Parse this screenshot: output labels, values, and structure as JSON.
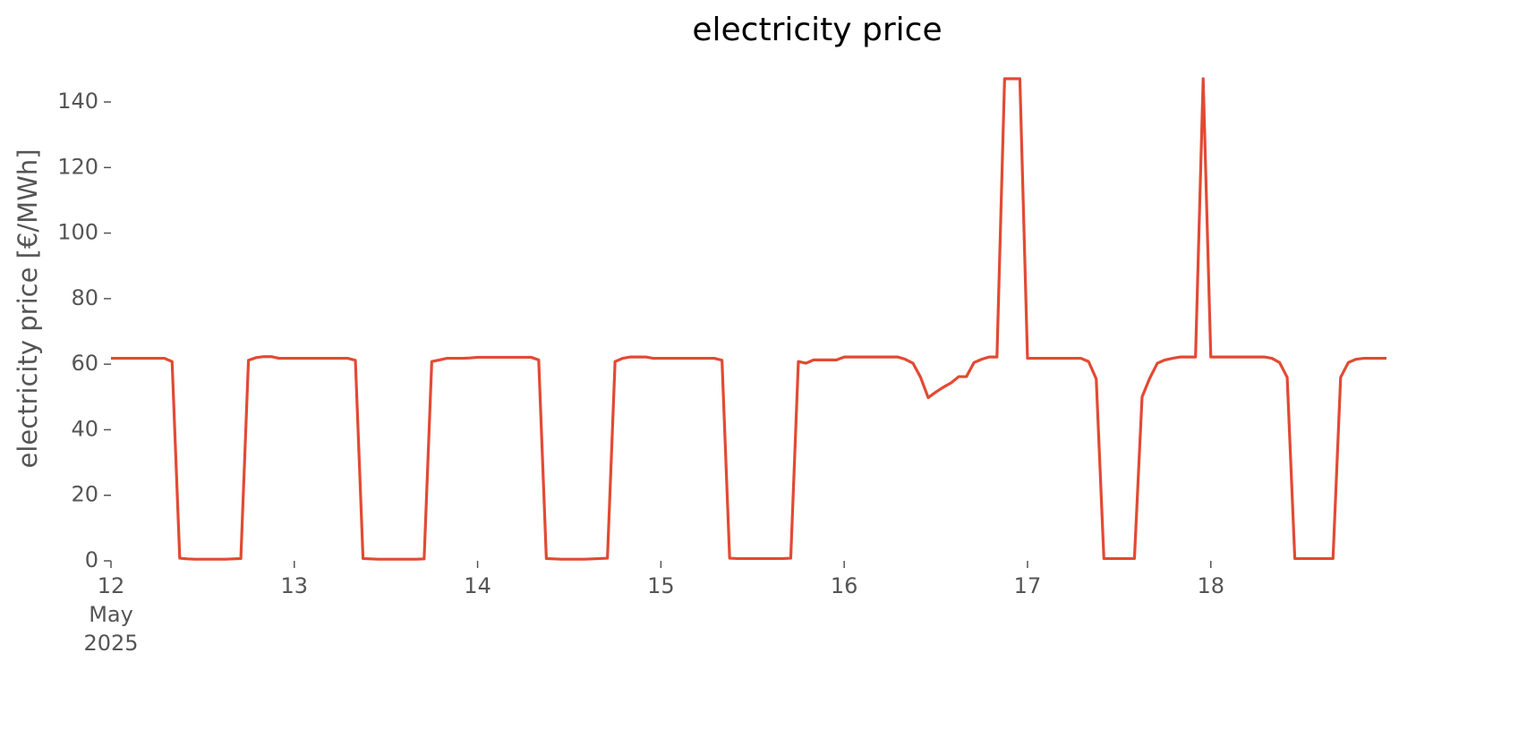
{
  "chart_data": {
    "type": "line",
    "title": "electricity price",
    "y_label": "electricity price [€/MWh]",
    "color": "#e24a33",
    "x": [
      "2025-05-12 00:00",
      "2025-05-12 01:00",
      "2025-05-12 02:00",
      "2025-05-12 03:00",
      "2025-05-12 04:00",
      "2025-05-12 05:00",
      "2025-05-12 06:00",
      "2025-05-12 07:00",
      "2025-05-12 08:00",
      "2025-05-12 09:00",
      "2025-05-12 10:00",
      "2025-05-12 11:00",
      "2025-05-12 12:00",
      "2025-05-12 13:00",
      "2025-05-12 14:00",
      "2025-05-12 15:00",
      "2025-05-12 16:00",
      "2025-05-12 17:00",
      "2025-05-12 18:00",
      "2025-05-12 19:00",
      "2025-05-12 20:00",
      "2025-05-12 21:00",
      "2025-05-12 22:00",
      "2025-05-12 23:00",
      "2025-05-13 00:00",
      "2025-05-13 01:00",
      "2025-05-13 02:00",
      "2025-05-13 03:00",
      "2025-05-13 04:00",
      "2025-05-13 05:00",
      "2025-05-13 06:00",
      "2025-05-13 07:00",
      "2025-05-13 08:00",
      "2025-05-13 09:00",
      "2025-05-13 10:00",
      "2025-05-13 11:00",
      "2025-05-13 12:00",
      "2025-05-13 13:00",
      "2025-05-13 14:00",
      "2025-05-13 15:00",
      "2025-05-13 16:00",
      "2025-05-13 17:00",
      "2025-05-13 18:00",
      "2025-05-13 19:00",
      "2025-05-13 20:00",
      "2025-05-13 21:00",
      "2025-05-13 22:00",
      "2025-05-13 23:00",
      "2025-05-14 00:00",
      "2025-05-14 01:00",
      "2025-05-14 02:00",
      "2025-05-14 03:00",
      "2025-05-14 04:00",
      "2025-05-14 05:00",
      "2025-05-14 06:00",
      "2025-05-14 07:00",
      "2025-05-14 08:00",
      "2025-05-14 09:00",
      "2025-05-14 10:00",
      "2025-05-14 11:00",
      "2025-05-14 12:00",
      "2025-05-14 13:00",
      "2025-05-14 14:00",
      "2025-05-14 15:00",
      "2025-05-14 16:00",
      "2025-05-14 17:00",
      "2025-05-14 18:00",
      "2025-05-14 19:00",
      "2025-05-14 20:00",
      "2025-05-14 21:00",
      "2025-05-14 22:00",
      "2025-05-14 23:00",
      "2025-05-15 00:00",
      "2025-05-15 01:00",
      "2025-05-15 02:00",
      "2025-05-15 03:00",
      "2025-05-15 04:00",
      "2025-05-15 05:00",
      "2025-05-15 06:00",
      "2025-05-15 07:00",
      "2025-05-15 08:00",
      "2025-05-15 09:00",
      "2025-05-15 10:00",
      "2025-05-15 11:00",
      "2025-05-15 12:00",
      "2025-05-15 13:00",
      "2025-05-15 14:00",
      "2025-05-15 15:00",
      "2025-05-15 16:00",
      "2025-05-15 17:00",
      "2025-05-15 18:00",
      "2025-05-15 19:00",
      "2025-05-15 20:00",
      "2025-05-15 21:00",
      "2025-05-15 22:00",
      "2025-05-15 23:00",
      "2025-05-16 00:00",
      "2025-05-16 01:00",
      "2025-05-16 02:00",
      "2025-05-16 03:00",
      "2025-05-16 04:00",
      "2025-05-16 05:00",
      "2025-05-16 06:00",
      "2025-05-16 07:00",
      "2025-05-16 08:00",
      "2025-05-16 09:00",
      "2025-05-16 10:00",
      "2025-05-16 11:00",
      "2025-05-16 12:00",
      "2025-05-16 13:00",
      "2025-05-16 14:00",
      "2025-05-16 15:00",
      "2025-05-16 16:00",
      "2025-05-16 17:00",
      "2025-05-16 18:00",
      "2025-05-16 19:00",
      "2025-05-16 20:00",
      "2025-05-16 21:00",
      "2025-05-16 22:00",
      "2025-05-16 23:00",
      "2025-05-17 00:00",
      "2025-05-17 01:00",
      "2025-05-17 02:00",
      "2025-05-17 03:00",
      "2025-05-17 04:00",
      "2025-05-17 05:00",
      "2025-05-17 06:00",
      "2025-05-17 07:00",
      "2025-05-17 08:00",
      "2025-05-17 09:00",
      "2025-05-17 10:00",
      "2025-05-17 11:00",
      "2025-05-17 12:00",
      "2025-05-17 13:00",
      "2025-05-17 14:00",
      "2025-05-17 15:00",
      "2025-05-17 16:00",
      "2025-05-17 17:00",
      "2025-05-17 18:00",
      "2025-05-17 19:00",
      "2025-05-17 20:00",
      "2025-05-17 21:00",
      "2025-05-17 22:00",
      "2025-05-17 23:00",
      "2025-05-18 00:00",
      "2025-05-18 01:00",
      "2025-05-18 02:00",
      "2025-05-18 03:00",
      "2025-05-18 04:00",
      "2025-05-18 05:00",
      "2025-05-18 06:00",
      "2025-05-18 07:00",
      "2025-05-18 08:00",
      "2025-05-18 09:00",
      "2025-05-18 10:00",
      "2025-05-18 11:00",
      "2025-05-18 12:00",
      "2025-05-18 13:00",
      "2025-05-18 14:00",
      "2025-05-18 15:00",
      "2025-05-18 16:00",
      "2025-05-18 17:00",
      "2025-05-18 18:00",
      "2025-05-18 19:00",
      "2025-05-18 20:00",
      "2025-05-18 21:00",
      "2025-05-18 22:00",
      "2025-05-18 23:00"
    ],
    "values": [
      61.8,
      61.8,
      61.8,
      61.8,
      61.8,
      61.8,
      61.8,
      61.8,
      60.8,
      0.8,
      0.6,
      0.5,
      0.5,
      0.5,
      0.5,
      0.5,
      0.6,
      0.7,
      61.2,
      62.0,
      62.3,
      62.3,
      61.8,
      61.8,
      61.8,
      61.8,
      61.8,
      61.8,
      61.8,
      61.8,
      61.8,
      61.8,
      61.2,
      0.7,
      0.6,
      0.5,
      0.5,
      0.5,
      0.5,
      0.5,
      0.5,
      0.6,
      60.8,
      61.3,
      61.8,
      61.8,
      61.8,
      61.9,
      62.1,
      62.1,
      62.1,
      62.1,
      62.1,
      62.1,
      62.1,
      62.1,
      61.3,
      0.7,
      0.6,
      0.5,
      0.5,
      0.5,
      0.5,
      0.6,
      0.7,
      0.8,
      60.8,
      61.8,
      62.2,
      62.2,
      62.2,
      61.8,
      61.8,
      61.8,
      61.8,
      61.8,
      61.8,
      61.8,
      61.8,
      61.8,
      61.2,
      0.8,
      0.7,
      0.7,
      0.7,
      0.7,
      0.7,
      0.7,
      0.7,
      0.8,
      60.8,
      60.3,
      61.3,
      61.3,
      61.3,
      61.3,
      62.2,
      62.2,
      62.2,
      62.2,
      62.2,
      62.2,
      62.2,
      62.2,
      61.5,
      60.3,
      56.0,
      49.8,
      51.5,
      53.0,
      54.3,
      56.2,
      56.2,
      60.5,
      61.5,
      62.2,
      62.2,
      147.1,
      147.1,
      147.1,
      61.8,
      61.8,
      61.8,
      61.8,
      61.8,
      61.8,
      61.8,
      61.8,
      60.8,
      55.5,
      0.7,
      0.7,
      0.7,
      0.7,
      0.7,
      50.0,
      55.7,
      60.3,
      61.3,
      61.8,
      62.2,
      62.2,
      62.2,
      147.1,
      62.2,
      62.2,
      62.2,
      62.2,
      62.2,
      62.2,
      62.2,
      62.2,
      61.8,
      60.5,
      56.0,
      0.7,
      0.7,
      0.7,
      0.7,
      0.7,
      0.7,
      56.0,
      60.5,
      61.5,
      61.8,
      61.8,
      61.8,
      61.8
    ],
    "xlim": [
      "2025-05-12 00:00",
      "2025-05-18 23:00"
    ],
    "xticks": [
      {
        "value": "2025-05-12 00:00",
        "label": [
          "12",
          "May",
          "2025"
        ]
      },
      {
        "value": "2025-05-13 00:00",
        "label": "13"
      },
      {
        "value": "2025-05-14 00:00",
        "label": "14"
      },
      {
        "value": "2025-05-15 00:00",
        "label": "15"
      },
      {
        "value": "2025-05-16 00:00",
        "label": "16"
      },
      {
        "value": "2025-05-17 00:00",
        "label": "17"
      },
      {
        "value": "2025-05-18 00:00",
        "label": "18"
      }
    ],
    "ylim": [
      0,
      147.1
    ],
    "yticks": [
      0,
      20,
      40,
      60,
      80,
      100,
      120,
      140
    ],
    "grid": false
  }
}
